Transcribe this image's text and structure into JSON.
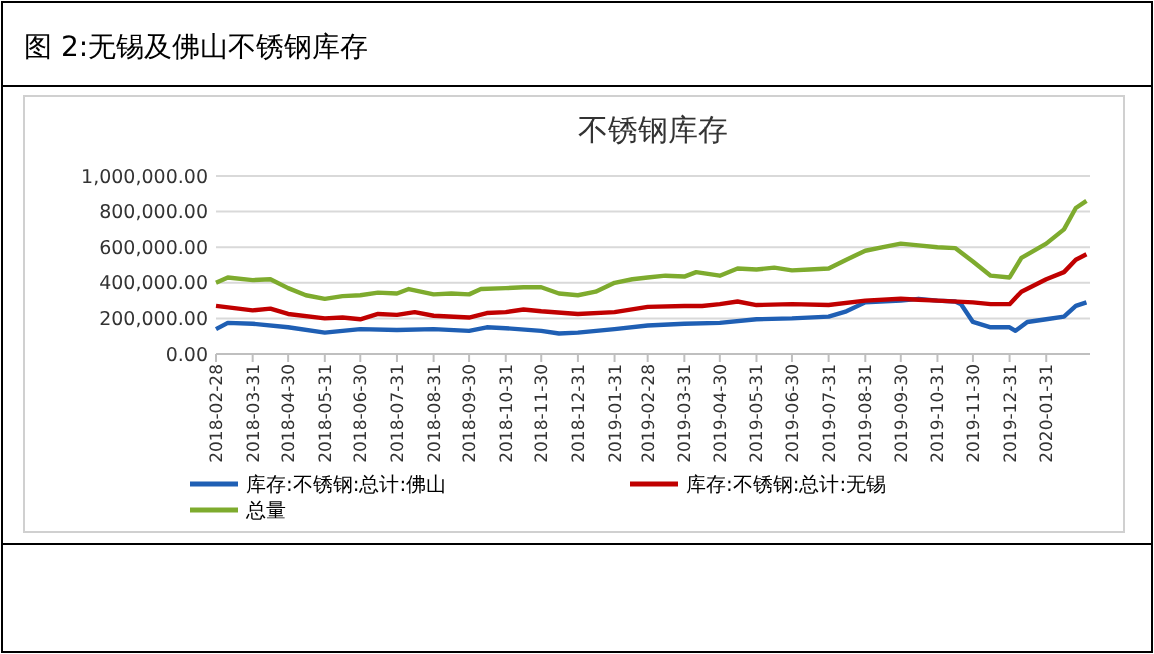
{
  "chart_data": {
    "type": "line",
    "title": "不锈钢库存",
    "subtitle": "图 2:无锡及佛山不锈钢库存",
    "xlim": [
      "2018-02-28",
      "2020-03-08"
    ],
    "xticks": [
      "2018-02-28",
      "2018-03-31",
      "2018-04-30",
      "2018-05-31",
      "2018-06-30",
      "2018-07-31",
      "2018-08-31",
      "2018-09-30",
      "2018-10-31",
      "2018-11-30",
      "2018-12-31",
      "2019-01-31",
      "2019-02-28",
      "2019-03-31",
      "2019-04-30",
      "2019-05-31",
      "2019-06-30",
      "2019-07-31",
      "2019-08-31",
      "2019-09-30",
      "2019-10-31",
      "2019-11-30",
      "2019-12-31",
      "2020-01-31"
    ],
    "ylim": [
      0,
      1000000
    ],
    "yticks": [
      {
        "value": 0,
        "label": "0.00"
      },
      {
        "value": 200000,
        "label": "200,000.00"
      },
      {
        "value": 400000,
        "label": "400,000.00"
      },
      {
        "value": 600000,
        "label": "600,000.00"
      },
      {
        "value": 800000,
        "label": "800,000.00"
      },
      {
        "value": 1000000,
        "label": "1,000,000.00"
      }
    ],
    "grid": "y",
    "legend": "bottom",
    "line_style": "solid",
    "marker": "none",
    "series": [
      {
        "name": "库存:不锈钢:总计:佛山",
        "color": "#1f5fb4",
        "x": [
          "2018-02-28",
          "2018-03-10",
          "2018-03-31",
          "2018-04-30",
          "2018-05-31",
          "2018-06-15",
          "2018-06-30",
          "2018-07-31",
          "2018-08-31",
          "2018-09-30",
          "2018-10-15",
          "2018-10-31",
          "2018-11-30",
          "2018-12-15",
          "2018-12-31",
          "2019-01-31",
          "2019-02-28",
          "2019-03-31",
          "2019-04-30",
          "2019-05-31",
          "2019-06-30",
          "2019-07-31",
          "2019-08-15",
          "2019-08-31",
          "2019-09-30",
          "2019-10-15",
          "2019-10-31",
          "2019-11-15",
          "2019-11-20",
          "2019-11-30",
          "2019-12-15",
          "2019-12-31",
          "2020-01-05",
          "2020-01-15",
          "2020-01-31",
          "2020-02-15",
          "2020-02-25",
          "2020-03-05"
        ],
        "values": [
          140000,
          175000,
          170000,
          150000,
          120000,
          130000,
          140000,
          135000,
          140000,
          130000,
          150000,
          145000,
          130000,
          115000,
          120000,
          140000,
          160000,
          170000,
          175000,
          195000,
          200000,
          210000,
          240000,
          290000,
          300000,
          310000,
          300000,
          295000,
          280000,
          180000,
          150000,
          150000,
          130000,
          180000,
          195000,
          210000,
          270000,
          290000
        ]
      },
      {
        "name": "库存:不锈钢:总计:无锡",
        "color": "#c00000",
        "x": [
          "2018-02-28",
          "2018-03-31",
          "2018-04-15",
          "2018-04-30",
          "2018-05-31",
          "2018-06-15",
          "2018-06-30",
          "2018-07-15",
          "2018-07-31",
          "2018-08-15",
          "2018-08-31",
          "2018-09-30",
          "2018-10-15",
          "2018-10-31",
          "2018-11-15",
          "2018-11-30",
          "2018-12-31",
          "2019-01-31",
          "2019-02-28",
          "2019-03-31",
          "2019-04-15",
          "2019-04-30",
          "2019-05-15",
          "2019-05-31",
          "2019-06-30",
          "2019-07-31",
          "2019-08-31",
          "2019-09-30",
          "2019-10-15",
          "2019-10-31",
          "2019-11-30",
          "2019-12-15",
          "2019-12-31",
          "2020-01-10",
          "2020-01-31",
          "2020-02-15",
          "2020-02-25",
          "2020-03-05"
        ],
        "values": [
          270000,
          245000,
          255000,
          225000,
          200000,
          205000,
          195000,
          225000,
          220000,
          235000,
          215000,
          205000,
          230000,
          235000,
          250000,
          240000,
          225000,
          235000,
          265000,
          270000,
          270000,
          280000,
          295000,
          275000,
          280000,
          275000,
          300000,
          310000,
          305000,
          300000,
          290000,
          280000,
          280000,
          350000,
          420000,
          460000,
          530000,
          560000
        ]
      },
      {
        "name": "总量",
        "color": "#7eab2e",
        "x": [
          "2018-02-28",
          "2018-03-10",
          "2018-03-31",
          "2018-04-15",
          "2018-04-30",
          "2018-05-15",
          "2018-05-31",
          "2018-06-15",
          "2018-06-30",
          "2018-07-15",
          "2018-07-31",
          "2018-08-10",
          "2018-08-31",
          "2018-09-15",
          "2018-09-30",
          "2018-10-10",
          "2018-10-31",
          "2018-11-15",
          "2018-11-30",
          "2018-12-15",
          "2018-12-31",
          "2019-01-15",
          "2019-01-31",
          "2019-02-15",
          "2019-02-28",
          "2019-03-15",
          "2019-03-31",
          "2019-04-10",
          "2019-04-30",
          "2019-05-15",
          "2019-05-31",
          "2019-06-15",
          "2019-06-30",
          "2019-07-15",
          "2019-07-31",
          "2019-08-15",
          "2019-08-31",
          "2019-09-15",
          "2019-09-30",
          "2019-10-15",
          "2019-10-31",
          "2019-11-15",
          "2019-11-30",
          "2019-12-15",
          "2019-12-31",
          "2020-01-10",
          "2020-01-31",
          "2020-02-15",
          "2020-02-25",
          "2020-03-05"
        ],
        "values": [
          400000,
          430000,
          415000,
          420000,
          370000,
          330000,
          310000,
          325000,
          330000,
          345000,
          340000,
          365000,
          335000,
          340000,
          335000,
          365000,
          370000,
          375000,
          375000,
          340000,
          330000,
          350000,
          400000,
          420000,
          430000,
          440000,
          435000,
          460000,
          440000,
          480000,
          475000,
          485000,
          470000,
          475000,
          480000,
          530000,
          580000,
          600000,
          620000,
          610000,
          600000,
          595000,
          520000,
          440000,
          430000,
          540000,
          620000,
          700000,
          820000,
          860000
        ]
      }
    ]
  }
}
